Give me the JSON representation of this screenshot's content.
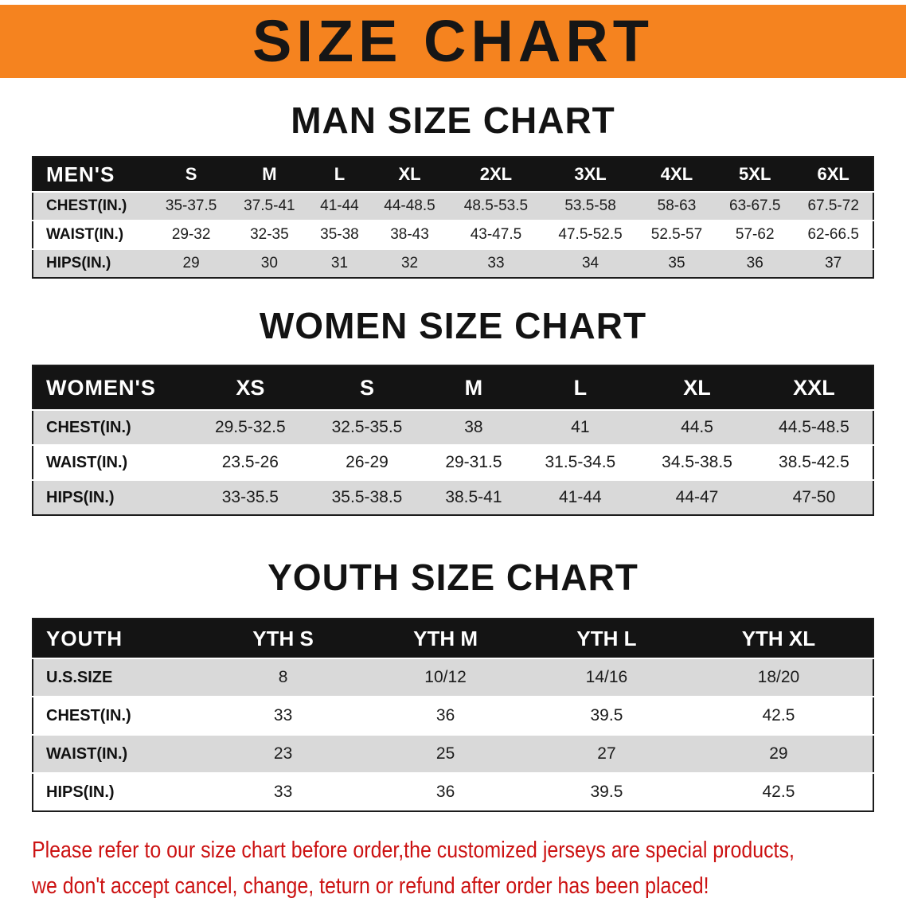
{
  "banner": {
    "title": "SIZE CHART"
  },
  "men_section": {
    "heading": "MAN SIZE CHART",
    "table": {
      "header": [
        "MEN'S",
        "S",
        "M",
        "L",
        "XL",
        "2XL",
        "3XL",
        "4XL",
        "5XL",
        "6XL"
      ],
      "rows": [
        [
          "CHEST(IN.)",
          "35-37.5",
          "37.5-41",
          "41-44",
          "44-48.5",
          "48.5-53.5",
          "53.5-58",
          "58-63",
          "63-67.5",
          "67.5-72"
        ],
        [
          "WAIST(IN.)",
          "29-32",
          "32-35",
          "35-38",
          "38-43",
          "43-47.5",
          "47.5-52.5",
          "52.5-57",
          "57-62",
          "62-66.5"
        ],
        [
          "HIPS(IN.)",
          "29",
          "30",
          "31",
          "32",
          "33",
          "34",
          "35",
          "36",
          "37"
        ]
      ]
    }
  },
  "women_section": {
    "heading": "WOMEN SIZE CHART",
    "table": {
      "header": [
        "WOMEN'S",
        "XS",
        "S",
        "M",
        "L",
        "XL",
        "XXL"
      ],
      "rows": [
        [
          "CHEST(IN.)",
          "29.5-32.5",
          "32.5-35.5",
          "38",
          "41",
          "44.5",
          "44.5-48.5"
        ],
        [
          "WAIST(IN.)",
          "23.5-26",
          "26-29",
          "29-31.5",
          "31.5-34.5",
          "34.5-38.5",
          "38.5-42.5"
        ],
        [
          "HIPS(IN.)",
          "33-35.5",
          "35.5-38.5",
          "38.5-41",
          "41-44",
          "44-47",
          "47-50"
        ]
      ]
    }
  },
  "youth_section": {
    "heading": "YOUTH SIZE CHART",
    "table": {
      "header": [
        "YOUTH",
        "YTH S",
        "YTH M",
        "YTH L",
        "YTH XL"
      ],
      "rows": [
        [
          "U.S.SIZE",
          "8",
          "10/12",
          "14/16",
          "18/20"
        ],
        [
          "CHEST(IN.)",
          "33",
          "36",
          "39.5",
          "42.5"
        ],
        [
          "WAIST(IN.)",
          "23",
          "25",
          "27",
          "29"
        ],
        [
          "HIPS(IN.)",
          "33",
          "36",
          "39.5",
          "42.5"
        ]
      ]
    }
  },
  "disclaimer": {
    "line1": "Please refer to our size chart before order,the customized jerseys are special products,",
    "line2": "we don't accept cancel, change, teturn or refund after order has been placed!"
  },
  "colors": {
    "banner_bg": "#f5831f",
    "header_bg": "#141414",
    "row_alt_bg": "#d9d9d9",
    "disclaimer_red": "#cc1212"
  }
}
